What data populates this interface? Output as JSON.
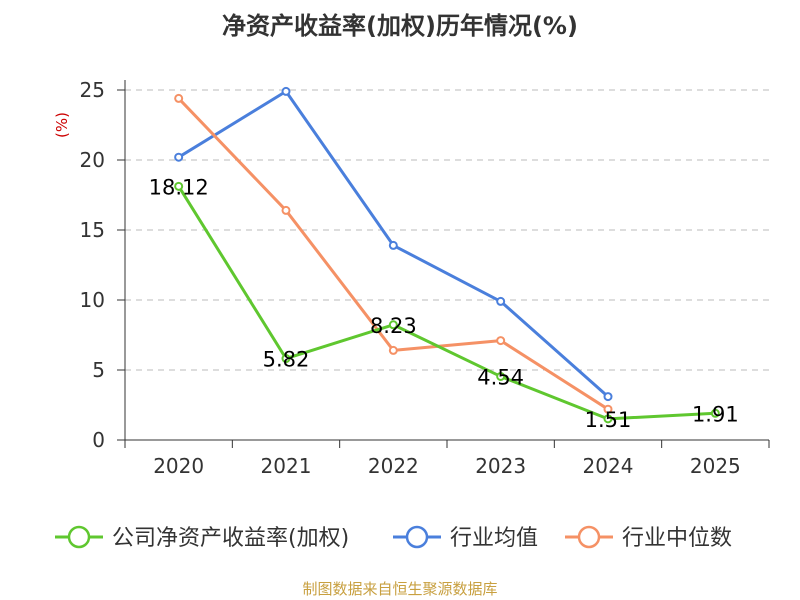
{
  "title": "净资产收益率(加权)历年情况(%)",
  "source": "制图数据来自恒生聚源数据库",
  "chart_data": {
    "type": "line",
    "title": "净资产收益率(加权)历年情况(%)",
    "xlabel": "",
    "ylabel": "(%)",
    "ylim": [
      0,
      25
    ],
    "yticks": [
      0,
      5,
      10,
      15,
      20,
      25
    ],
    "grid": true,
    "legend_position": "bottom",
    "categories": [
      "2020",
      "2021",
      "2022",
      "2023",
      "2024",
      "2025"
    ],
    "series": [
      {
        "name": "公司净资产收益率(加权)",
        "color": "#5fc72f",
        "values": [
          18.12,
          5.82,
          8.23,
          4.54,
          1.51,
          1.91
        ],
        "labels": [
          "18.12",
          "5.82",
          "8.23",
          "4.54",
          "1.51",
          "1.91"
        ]
      },
      {
        "name": "行业均值",
        "color": "#4a7fdc",
        "values": [
          20.2,
          24.9,
          13.9,
          9.9,
          3.1,
          null
        ]
      },
      {
        "name": "行业中位数",
        "color": "#f59165",
        "values": [
          24.4,
          16.4,
          6.4,
          7.1,
          2.2,
          null
        ]
      }
    ]
  }
}
